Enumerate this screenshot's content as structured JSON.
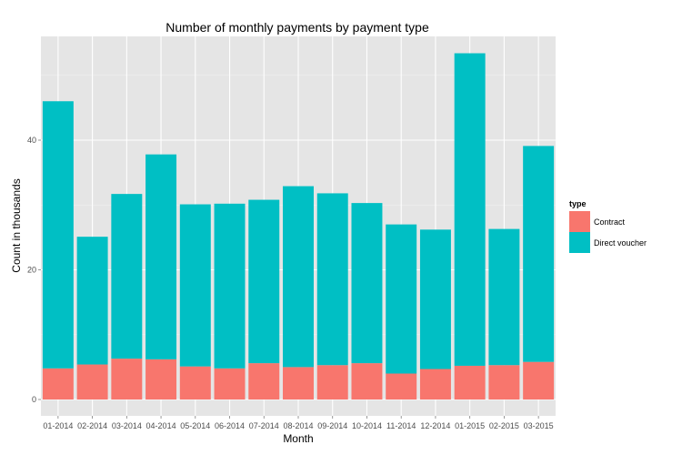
{
  "chart_data": {
    "type": "bar",
    "stacked": true,
    "title": "Number of monthly payments by payment type",
    "xlabel": "Month",
    "ylabel": "Count in thousands",
    "categories": [
      "01-2014",
      "02-2014",
      "03-2014",
      "04-2014",
      "05-2014",
      "06-2014",
      "07-2014",
      "08-2014",
      "09-2014",
      "10-2014",
      "11-2014",
      "12-2014",
      "01-2015",
      "02-2015",
      "03-2015"
    ],
    "series": [
      {
        "name": "Contract",
        "color": "#F8766D",
        "values": [
          4.8,
          5.4,
          6.3,
          6.2,
          5.1,
          4.8,
          5.6,
          5.0,
          5.3,
          5.6,
          4.0,
          4.7,
          5.2,
          5.3,
          5.8
        ]
      },
      {
        "name": "Direct voucher",
        "color": "#00BFC4",
        "values": [
          41.2,
          19.7,
          25.4,
          31.6,
          25.0,
          25.4,
          25.2,
          27.9,
          26.5,
          24.7,
          23.0,
          21.5,
          48.2,
          21.0,
          33.3
        ]
      }
    ],
    "ylim": [
      0,
      55
    ],
    "yticks": [
      0,
      20,
      40
    ],
    "grid": true,
    "legend": {
      "title": "type",
      "position": "right"
    }
  }
}
